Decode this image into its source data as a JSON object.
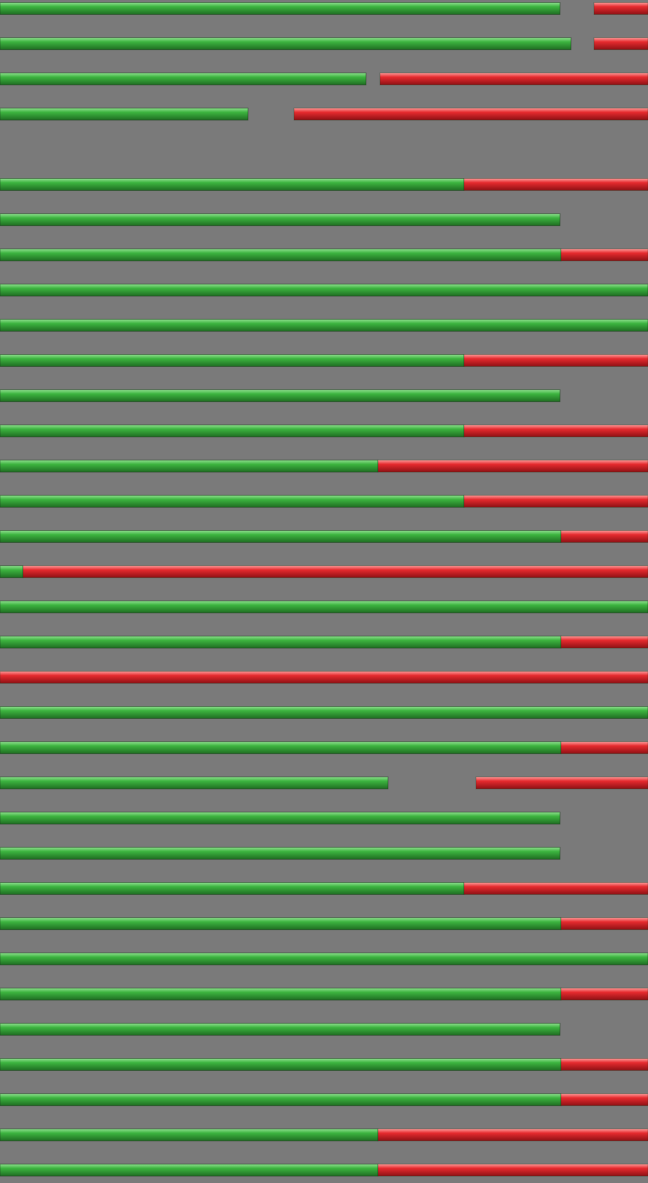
{
  "chart_data": {
    "type": "bar",
    "orientation": "horizontal",
    "background_color": "#7a7a7a",
    "series": [
      {
        "color": "#2fa03a"
      },
      {
        "color": "#e0262b"
      }
    ],
    "xlim": [
      0,
      648
    ],
    "rows": [
      {
        "segments": [
          {
            "s": 0,
            "start": 0,
            "end": 560
          },
          {
            "s": 1,
            "start": 594,
            "end": 648
          }
        ]
      },
      {
        "segments": [
          {
            "s": 0,
            "start": 0,
            "end": 571
          },
          {
            "s": 1,
            "start": 594,
            "end": 648
          }
        ]
      },
      {
        "segments": [
          {
            "s": 0,
            "start": 0,
            "end": 366
          },
          {
            "s": 1,
            "start": 380,
            "end": 648
          }
        ]
      },
      {
        "segments": [
          {
            "s": 0,
            "start": 0,
            "end": 248
          },
          {
            "s": 1,
            "start": 294,
            "end": 648
          }
        ]
      },
      {
        "segments": []
      },
      {
        "segments": [
          {
            "s": 0,
            "start": 0,
            "end": 464
          },
          {
            "s": 1,
            "start": 464,
            "end": 648
          }
        ]
      },
      {
        "segments": [
          {
            "s": 0,
            "start": 0,
            "end": 560
          }
        ]
      },
      {
        "segments": [
          {
            "s": 0,
            "start": 0,
            "end": 561
          },
          {
            "s": 1,
            "start": 561,
            "end": 648
          }
        ]
      },
      {
        "segments": [
          {
            "s": 0,
            "start": 0,
            "end": 648
          }
        ]
      },
      {
        "segments": [
          {
            "s": 0,
            "start": 0,
            "end": 648
          }
        ]
      },
      {
        "segments": [
          {
            "s": 0,
            "start": 0,
            "end": 464
          },
          {
            "s": 1,
            "start": 464,
            "end": 648
          }
        ]
      },
      {
        "segments": [
          {
            "s": 0,
            "start": 0,
            "end": 560
          }
        ]
      },
      {
        "segments": [
          {
            "s": 0,
            "start": 0,
            "end": 464
          },
          {
            "s": 1,
            "start": 464,
            "end": 648
          }
        ]
      },
      {
        "segments": [
          {
            "s": 0,
            "start": 0,
            "end": 378
          },
          {
            "s": 1,
            "start": 378,
            "end": 648
          }
        ]
      },
      {
        "segments": [
          {
            "s": 0,
            "start": 0,
            "end": 464
          },
          {
            "s": 1,
            "start": 464,
            "end": 648
          }
        ]
      },
      {
        "segments": [
          {
            "s": 0,
            "start": 0,
            "end": 561
          },
          {
            "s": 1,
            "start": 561,
            "end": 648
          }
        ]
      },
      {
        "segments": [
          {
            "s": 0,
            "start": 0,
            "end": 23
          },
          {
            "s": 1,
            "start": 23,
            "end": 648
          }
        ]
      },
      {
        "segments": [
          {
            "s": 0,
            "start": 0,
            "end": 648
          }
        ]
      },
      {
        "segments": [
          {
            "s": 0,
            "start": 0,
            "end": 561
          },
          {
            "s": 1,
            "start": 561,
            "end": 648
          }
        ]
      },
      {
        "segments": [
          {
            "s": 1,
            "start": 0,
            "end": 648
          }
        ]
      },
      {
        "segments": [
          {
            "s": 0,
            "start": 0,
            "end": 648
          }
        ]
      },
      {
        "segments": [
          {
            "s": 0,
            "start": 0,
            "end": 561
          },
          {
            "s": 1,
            "start": 561,
            "end": 648
          }
        ]
      },
      {
        "segments": [
          {
            "s": 0,
            "start": 0,
            "end": 388
          },
          {
            "s": 1,
            "start": 476,
            "end": 648
          }
        ]
      },
      {
        "segments": [
          {
            "s": 0,
            "start": 0,
            "end": 560
          }
        ]
      },
      {
        "segments": [
          {
            "s": 0,
            "start": 0,
            "end": 560
          }
        ]
      },
      {
        "segments": [
          {
            "s": 0,
            "start": 0,
            "end": 464
          },
          {
            "s": 1,
            "start": 464,
            "end": 648
          }
        ]
      },
      {
        "segments": [
          {
            "s": 0,
            "start": 0,
            "end": 561
          },
          {
            "s": 1,
            "start": 561,
            "end": 648
          }
        ]
      },
      {
        "segments": [
          {
            "s": 0,
            "start": 0,
            "end": 648
          }
        ]
      },
      {
        "segments": [
          {
            "s": 0,
            "start": 0,
            "end": 561
          },
          {
            "s": 1,
            "start": 561,
            "end": 648
          }
        ]
      },
      {
        "segments": [
          {
            "s": 0,
            "start": 0,
            "end": 560
          }
        ]
      },
      {
        "segments": [
          {
            "s": 0,
            "start": 0,
            "end": 561
          },
          {
            "s": 1,
            "start": 561,
            "end": 648
          }
        ]
      },
      {
        "segments": [
          {
            "s": 0,
            "start": 0,
            "end": 561
          },
          {
            "s": 1,
            "start": 561,
            "end": 648
          }
        ]
      },
      {
        "segments": [
          {
            "s": 0,
            "start": 0,
            "end": 378
          },
          {
            "s": 1,
            "start": 378,
            "end": 648
          }
        ]
      },
      {
        "segments": [
          {
            "s": 0,
            "start": 0,
            "end": 378
          },
          {
            "s": 1,
            "start": 378,
            "end": 648
          }
        ]
      }
    ]
  }
}
